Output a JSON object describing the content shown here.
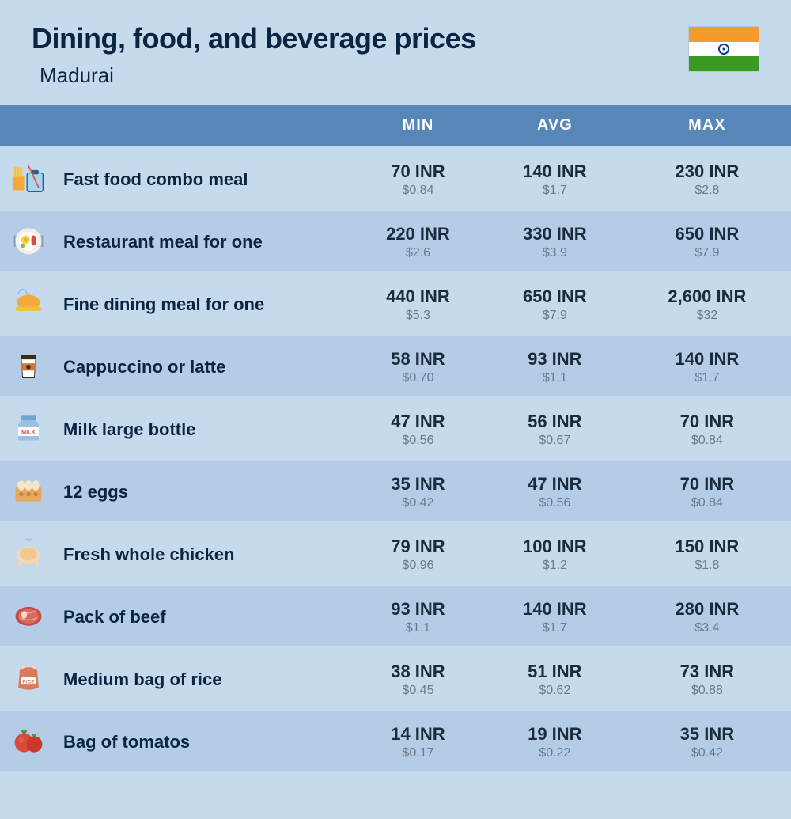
{
  "header": {
    "title": "Dining, food, and beverage prices",
    "subtitle": "Madurai",
    "flag_colors": {
      "saffron": "#f49b29",
      "white": "#ffffff",
      "green": "#3a9a26",
      "chakra": "#0a3e8c"
    }
  },
  "table": {
    "columns": [
      "MIN",
      "AVG",
      "MAX"
    ],
    "header_bg": "#5787b8",
    "header_text_color": "#ffffff",
    "row_even_bg": "#c6daed",
    "row_odd_bg": "#b4cce5",
    "inr_color": "#1a2b3c",
    "usd_color": "#6b7a8a",
    "rows": [
      {
        "icon": "fast-food",
        "name": "Fast food combo meal",
        "min_inr": "70 INR",
        "min_usd": "$0.84",
        "avg_inr": "140 INR",
        "avg_usd": "$1.7",
        "max_inr": "230 INR",
        "max_usd": "$2.8"
      },
      {
        "icon": "restaurant-meal",
        "name": "Restaurant meal for one",
        "min_inr": "220 INR",
        "min_usd": "$2.6",
        "avg_inr": "330 INR",
        "avg_usd": "$3.9",
        "max_inr": "650 INR",
        "max_usd": "$7.9"
      },
      {
        "icon": "fine-dining",
        "name": "Fine dining meal for one",
        "min_inr": "440 INR",
        "min_usd": "$5.3",
        "avg_inr": "650 INR",
        "avg_usd": "$7.9",
        "max_inr": "2,600 INR",
        "max_usd": "$32"
      },
      {
        "icon": "coffee",
        "name": "Cappuccino or latte",
        "min_inr": "58 INR",
        "min_usd": "$0.70",
        "avg_inr": "93 INR",
        "avg_usd": "$1.1",
        "max_inr": "140 INR",
        "max_usd": "$1.7"
      },
      {
        "icon": "milk",
        "name": "Milk large bottle",
        "min_inr": "47 INR",
        "min_usd": "$0.56",
        "avg_inr": "56 INR",
        "avg_usd": "$0.67",
        "max_inr": "70 INR",
        "max_usd": "$0.84"
      },
      {
        "icon": "eggs",
        "name": "12 eggs",
        "min_inr": "35 INR",
        "min_usd": "$0.42",
        "avg_inr": "47 INR",
        "avg_usd": "$0.56",
        "max_inr": "70 INR",
        "max_usd": "$0.84"
      },
      {
        "icon": "chicken",
        "name": "Fresh whole chicken",
        "min_inr": "79 INR",
        "min_usd": "$0.96",
        "avg_inr": "100 INR",
        "avg_usd": "$1.2",
        "max_inr": "150 INR",
        "max_usd": "$1.8"
      },
      {
        "icon": "beef",
        "name": "Pack of beef",
        "min_inr": "93 INR",
        "min_usd": "$1.1",
        "avg_inr": "140 INR",
        "avg_usd": "$1.7",
        "max_inr": "280 INR",
        "max_usd": "$3.4"
      },
      {
        "icon": "rice",
        "name": "Medium bag of rice",
        "min_inr": "38 INR",
        "min_usd": "$0.45",
        "avg_inr": "51 INR",
        "avg_usd": "$0.62",
        "max_inr": "73 INR",
        "max_usd": "$0.88"
      },
      {
        "icon": "tomato",
        "name": "Bag of tomatos",
        "min_inr": "14 INR",
        "min_usd": "$0.17",
        "avg_inr": "19 INR",
        "avg_usd": "$0.22",
        "max_inr": "35 INR",
        "max_usd": "$0.42"
      }
    ]
  }
}
